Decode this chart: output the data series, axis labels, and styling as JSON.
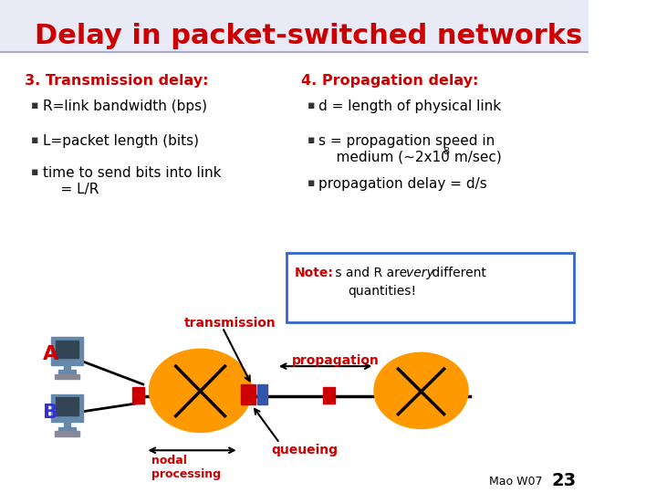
{
  "title": "Delay in packet-switched networks",
  "title_color": "#CC0000",
  "title_fontsize": 22,
  "bg_color": "#FFFFFF",
  "left_col_header": "3. Transmission delay:",
  "left_bullets": [
    "R=link bandwidth (bps)",
    "L=packet length (bits)",
    "time to send bits into link\n    = L/R"
  ],
  "right_col_header": "4. Propagation delay:",
  "right_bullet_1": "d = length of physical link",
  "right_bullet_2a": "s = propagation speed in",
  "right_bullet_2b": "    medium (~2x10",
  "right_bullet_2b_sup": "8",
  "right_bullet_2b_end": " m/sec)",
  "right_bullet_3": "propagation delay = d/s",
  "note_border_color": "#3366CC",
  "note_label": "Note:",
  "note_body": " s and R are ",
  "note_italic": "very",
  "note_end": " different",
  "note_line2": "quantities!",
  "label_color": "#CC0000",
  "bullet_color": "#000000",
  "header_color": "#CC0000",
  "A_label": "A",
  "B_label": "B",
  "A_color": "#CC0000",
  "B_color": "#3333CC",
  "footer_text": "Mao W07",
  "footer_page": "23",
  "transmission_label": "transmission",
  "propagation_label": "propagation",
  "nodal_label": "nodal\nprocessing",
  "queueing_label": "queueing"
}
